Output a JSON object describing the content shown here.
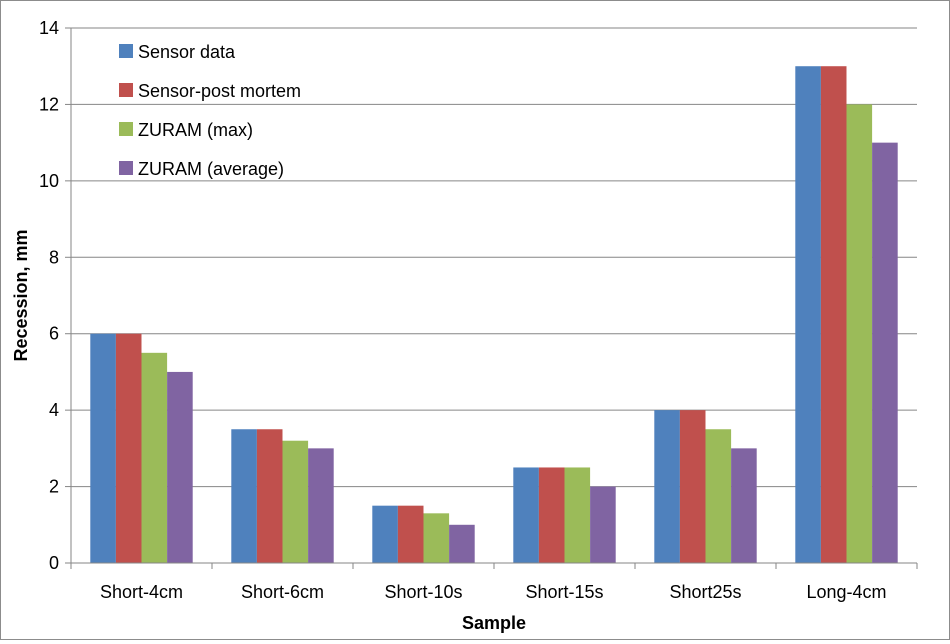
{
  "chart_data": {
    "type": "bar",
    "title": "",
    "xlabel": "Sample",
    "ylabel": "Recession, mm",
    "ylim": [
      0,
      14
    ],
    "yticks": [
      0,
      2,
      4,
      6,
      8,
      10,
      12,
      14
    ],
    "grid": true,
    "legend_position": "top-left",
    "categories": [
      "Short-4cm",
      "Short-6cm",
      "Short-10s",
      "Short-15s",
      "Short25s",
      "Long-4cm"
    ],
    "series": [
      {
        "name": "Sensor data",
        "color": "#4f81bd",
        "values": [
          6,
          3.5,
          1.5,
          2.5,
          4,
          13
        ]
      },
      {
        "name": "Sensor-post mortem",
        "color": "#c0504d",
        "values": [
          6,
          3.5,
          1.5,
          2.5,
          4,
          13
        ]
      },
      {
        "name": "ZURAM (max)",
        "color": "#9bbb59",
        "values": [
          5.5,
          3.2,
          1.3,
          2.5,
          3.5,
          12
        ]
      },
      {
        "name": "ZURAM (average)",
        "color": "#8064a2",
        "values": [
          5,
          3,
          1,
          2,
          3,
          11
        ]
      }
    ]
  }
}
